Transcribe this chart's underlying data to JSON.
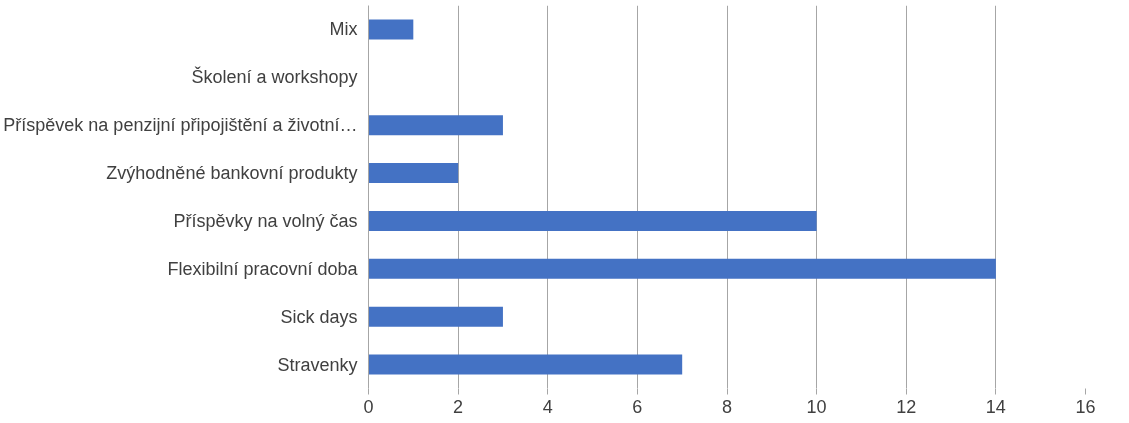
{
  "chart_data": {
    "type": "bar",
    "orientation": "horizontal",
    "categories": [
      "Mix",
      "Školení a workshopy",
      "Příspěvek na penzijní připojištění a životní…",
      "Zvýhodněné bankovní produkty",
      "Příspěvky na volný čas",
      "Flexibilní pracovní doba",
      "Sick days",
      "Stravenky"
    ],
    "values": [
      1,
      0,
      3,
      2,
      10,
      14,
      3,
      7
    ],
    "color": "#4472c4",
    "xlim": [
      0,
      16
    ],
    "xticks": [
      0,
      2,
      4,
      6,
      8,
      10,
      12,
      14,
      16
    ],
    "grid": "x"
  }
}
